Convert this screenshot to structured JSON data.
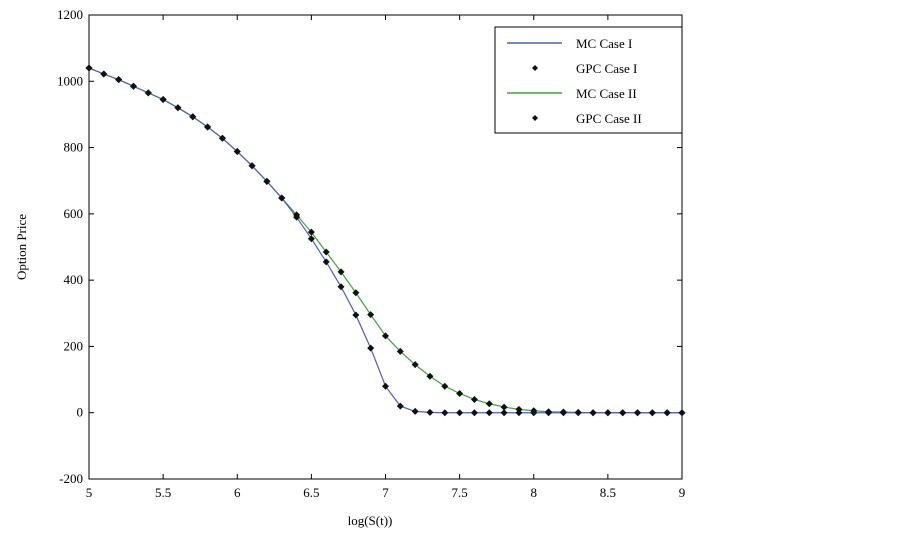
{
  "chart_data": {
    "type": "line",
    "title": "",
    "xlabel": "log(S(t))",
    "ylabel": "Option Price",
    "xlim": [
      5,
      9
    ],
    "ylim": [
      -200,
      1200
    ],
    "xticks": [
      5,
      5.5,
      6,
      6.5,
      7,
      7.5,
      8,
      8.5,
      9
    ],
    "xtick_labels": [
      "5",
      "5.5",
      "6",
      "6.5",
      "7",
      "7.5",
      "8",
      "8.5",
      "9"
    ],
    "yticks": [
      -200,
      0,
      200,
      400,
      600,
      800,
      1000,
      1200
    ],
    "ytick_labels": [
      "-200",
      "0",
      "200",
      "400",
      "600",
      "800",
      "1000",
      "1200"
    ],
    "grid": false,
    "legend_position": "top-right",
    "x": [
      5,
      5.1,
      5.2,
      5.3,
      5.4,
      5.5,
      5.6,
      5.7,
      5.8,
      5.9,
      6,
      6.1,
      6.2,
      6.3,
      6.4,
      6.5,
      6.6,
      6.7,
      6.8,
      6.9,
      7,
      7.1,
      7.2,
      7.3,
      7.4,
      7.5,
      7.6,
      7.7,
      7.8,
      7.9,
      8,
      8.1,
      8.2,
      8.3,
      8.4,
      8.5,
      8.6,
      8.7,
      8.8,
      8.9,
      9
    ],
    "series": [
      {
        "name": "MC Case I",
        "style": "line",
        "color": "#4a5fc1",
        "values": [
          1040,
          1022,
          1005,
          985,
          965,
          945,
          920,
          893,
          862,
          828,
          788,
          745,
          698,
          648,
          590,
          525,
          455,
          380,
          295,
          195,
          80,
          20,
          4,
          1,
          0,
          0,
          0,
          0,
          0,
          0,
          0,
          0,
          0,
          0,
          0,
          0,
          0,
          0,
          0,
          0,
          0
        ]
      },
      {
        "name": "GPC Case I",
        "style": "marker",
        "color": "#111111",
        "values": [
          1040,
          1022,
          1005,
          985,
          965,
          945,
          920,
          893,
          862,
          828,
          788,
          745,
          698,
          648,
          590,
          525,
          455,
          380,
          295,
          195,
          80,
          20,
          4,
          1,
          0,
          0,
          0,
          0,
          0,
          0,
          0,
          0,
          0,
          0,
          0,
          0,
          0,
          0,
          0,
          0,
          0
        ]
      },
      {
        "name": "MC Case II",
        "style": "line",
        "color": "#3aa83a",
        "values": [
          1040,
          1022,
          1005,
          985,
          965,
          945,
          920,
          893,
          862,
          828,
          788,
          745,
          698,
          648,
          597,
          545,
          485,
          425,
          362,
          296,
          232,
          185,
          145,
          110,
          80,
          58,
          40,
          27,
          17,
          10,
          6,
          3,
          2,
          1,
          0,
          0,
          0,
          0,
          0,
          0,
          0
        ]
      },
      {
        "name": "GPC Case II",
        "style": "marker",
        "color": "#111111",
        "values": [
          1040,
          1022,
          1005,
          985,
          965,
          945,
          920,
          893,
          862,
          828,
          788,
          745,
          698,
          648,
          597,
          545,
          485,
          425,
          362,
          296,
          232,
          185,
          145,
          110,
          80,
          58,
          40,
          27,
          17,
          10,
          6,
          3,
          2,
          1,
          0,
          0,
          0,
          0,
          0,
          0,
          0
        ]
      }
    ]
  }
}
